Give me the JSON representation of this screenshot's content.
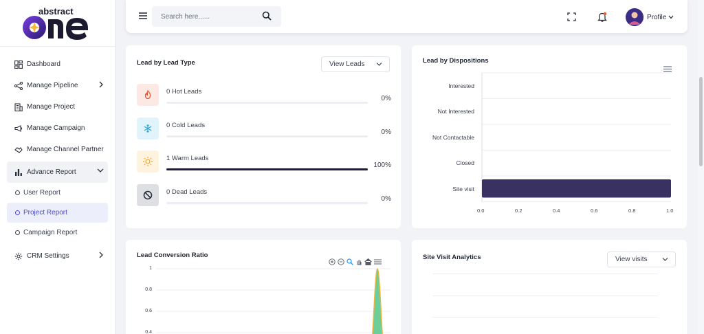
{
  "brand": {
    "name_top": "abstract",
    "name_main": "one"
  },
  "sidebar": {
    "items": [
      {
        "label": "Dashboard",
        "icon": "dashboard-icon"
      },
      {
        "label": "Manage Pipeline",
        "icon": "pipeline-icon",
        "has_children": true
      },
      {
        "label": "Manage Project",
        "icon": "building-icon"
      },
      {
        "label": "Manage Campaign",
        "icon": "megaphone-icon"
      },
      {
        "label": "Manage Channel Partner",
        "icon": "handshake-icon"
      },
      {
        "label": "Advance Report",
        "icon": "bar-chart-icon",
        "expanded": true
      },
      {
        "label": "CRM Settings",
        "icon": "gear-icon",
        "has_children": true
      }
    ],
    "sub_items": [
      {
        "label": "User Report",
        "active": false
      },
      {
        "label": "Project Report",
        "active": true
      },
      {
        "label": "Campaign Report",
        "active": false
      }
    ]
  },
  "header": {
    "search_placeholder": "Search here......",
    "profile_label": "Profile"
  },
  "lead_type": {
    "title": "Lead by Lead Type",
    "dropdown_label": "View Leads",
    "rows": [
      {
        "label": "0 Hot Leads",
        "percent_text": "0%",
        "progress": 0,
        "icon": "fire-icon",
        "color": "#e8542f",
        "bg": "#fde9e4"
      },
      {
        "label": "0 Cold Leads",
        "percent_text": "0%",
        "progress": 0,
        "icon": "snowflake-icon",
        "color": "#2aa6d8",
        "bg": "#e2f4fb"
      },
      {
        "label": "1 Warm Leads",
        "percent_text": "100%",
        "progress": 1,
        "icon": "sun-icon",
        "color": "#f2a82a",
        "bg": "#fdf3df"
      },
      {
        "label": "0 Dead Leads",
        "percent_text": "0%",
        "progress": 0,
        "icon": "ban-icon",
        "color": "#1f2430",
        "bg": "#dedfe3"
      }
    ]
  },
  "dispositions": {
    "title": "Lead by Dispositions",
    "chart_data": {
      "type": "bar",
      "orientation": "horizontal",
      "categories": [
        "Interested",
        "Not Interested",
        "Not Contactable",
        "Closed",
        "Site visit"
      ],
      "values": [
        0,
        0,
        0,
        0,
        1
      ],
      "xlim": [
        0,
        1
      ],
      "xticks": [
        "0.0",
        "0.2",
        "0.4",
        "0.6",
        "0.8",
        "1.0"
      ],
      "bar_color": "#383161",
      "grid": true
    }
  },
  "conversion": {
    "title": "Lead Conversion Ratio",
    "toolbar_icons": [
      "zoom-in-icon",
      "zoom-out-icon",
      "search-zoom-icon",
      "pan-icon",
      "home-icon",
      "menu-icon"
    ],
    "chart_data": {
      "type": "area",
      "yticks": [
        "1",
        "0.8",
        "0.6",
        "0.4"
      ],
      "ylim": [
        0,
        1
      ],
      "peak": 1,
      "fill_color": "#6ccf9a",
      "stroke_color": "#f2b33d"
    }
  },
  "site_visit": {
    "title": "Site Visit Analytics",
    "dropdown_label": "View visits"
  }
}
